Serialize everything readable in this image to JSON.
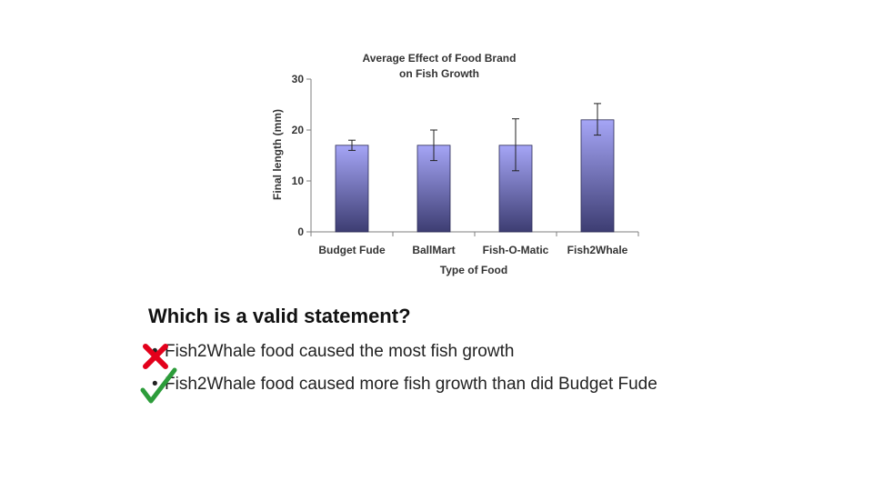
{
  "chart_data": {
    "type": "bar",
    "title_lines": [
      "Average Effect of Food Brand",
      "on Fish Growth"
    ],
    "xlabel": "Type of Food",
    "ylabel": "Final length (mm)",
    "ylim": [
      0,
      30
    ],
    "yticks": [
      0,
      10,
      20,
      30
    ],
    "categories": [
      "Budget Fude",
      "BallMart",
      "Fish-O-Matic",
      "Fish2Whale"
    ],
    "series": [
      {
        "values": [
          17,
          17,
          17,
          22
        ],
        "error_low": [
          16,
          14,
          12,
          19
        ],
        "error_high": [
          18,
          20,
          22.2,
          25.2
        ]
      }
    ],
    "colors": {
      "bar_top": "#a5a5f6",
      "bar_bottom": "#3d3d72",
      "axis": "#7f7f7f"
    }
  },
  "question": "Which is a valid statement?",
  "statements": [
    {
      "bullet": "•",
      "text": "Fish2Whale food caused the most fish growth",
      "mark": "cross-icon",
      "mark_color": "#e3001b"
    },
    {
      "bullet": "•",
      "text": "Fish2Whale food caused more fish growth than did Budget Fude",
      "mark": "checkmark-icon",
      "mark_color": "#2c9c3a"
    }
  ]
}
